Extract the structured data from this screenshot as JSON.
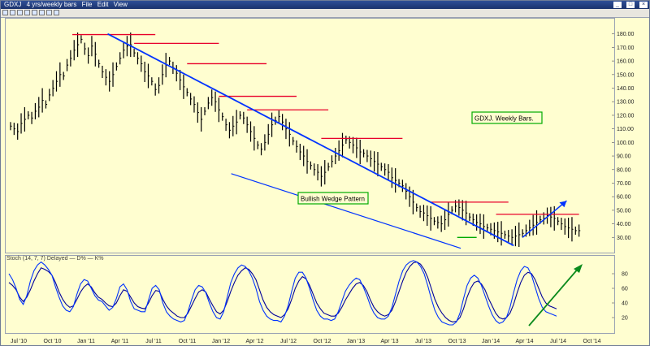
{
  "window": {
    "symbol": "GDXJ",
    "timeframe": "4 yrs/weekly bars"
  },
  "menu": [
    "File",
    "Edit",
    "View"
  ],
  "toolbar_icons": [
    "crosshair-icon",
    "zoom-icon",
    "line-icon",
    "text-icon",
    "hline-icon",
    "trend-icon",
    "fib-icon",
    "arrow-icon"
  ],
  "oscillator": {
    "name": "Stoch",
    "params": "(14, 7, 7) Delayed",
    "series": [
      "D%",
      "K%"
    ]
  },
  "colors": {
    "bars": "#000000",
    "resistance": "#e8002a",
    "trend": "#0033ff",
    "stoch_d": "#000099",
    "stoch_k": "#0033ff",
    "arrow_green": "#0a8a1c",
    "box_border": "#00aa00"
  },
  "annotations": {
    "title_box": "GDXJ. Weekly Bars.",
    "pattern_box": "Bullish Wedge Pattern"
  },
  "chart_data": [
    {
      "type": "bar",
      "title": "",
      "y_ticks": [
        30,
        40,
        50,
        60,
        70,
        80,
        90,
        100,
        110,
        120,
        130,
        140,
        150,
        160,
        170,
        180
      ],
      "y_tick_labels": [
        "30.00",
        "40.00",
        "50.00",
        "60.00",
        "70.00",
        "80.00",
        "90.00",
        "100.00",
        "110.00",
        "120.00",
        "130.00",
        "140.00",
        "150.00",
        "160.00",
        "170.00",
        "180.00"
      ],
      "ylim": [
        20,
        190
      ],
      "x_ticks": [
        "Jul '10",
        "Oct '10",
        "Jan '11",
        "Apr '11",
        "Jul '11",
        "Oct '11",
        "Jan '12",
        "Apr '12",
        "Jul '12",
        "Oct '12",
        "Jan '13",
        "Apr '13",
        "Jul '13",
        "Oct '13",
        "Jan '14",
        "Apr '14",
        "Jul '14",
        "Oct '14"
      ],
      "x_range_weeks": [
        0,
        225
      ],
      "closes": [
        112,
        110,
        108,
        114,
        117,
        120,
        118,
        123,
        126,
        131,
        128,
        135,
        140,
        145,
        150,
        149,
        157,
        162,
        168,
        172,
        176,
        169,
        164,
        171,
        165,
        158,
        152,
        148,
        145,
        150,
        156,
        162,
        168,
        171,
        172,
        166,
        162,
        158,
        152,
        149,
        145,
        139,
        142,
        150,
        157,
        160,
        155,
        151,
        146,
        141,
        137,
        132,
        128,
        122,
        117,
        123,
        129,
        133,
        130,
        124,
        119,
        113,
        109,
        112,
        115,
        120,
        118,
        113,
        108,
        103,
        98,
        95,
        100,
        106,
        113,
        116,
        119,
        115,
        110,
        106,
        101,
        97,
        93,
        90,
        86,
        83,
        80,
        78,
        75,
        78,
        82,
        86,
        90,
        94,
        98,
        102,
        100,
        98,
        96,
        93,
        92,
        90,
        88,
        86,
        84,
        82,
        80,
        78,
        74,
        72,
        70,
        68,
        64,
        60,
        56,
        52,
        49,
        48,
        46,
        44,
        42,
        41,
        40,
        43,
        47,
        50,
        53,
        52,
        50,
        48,
        45,
        43,
        41,
        40,
        38,
        37,
        36,
        35,
        34,
        33,
        32,
        31,
        30,
        31,
        32,
        33,
        35,
        37,
        39,
        41,
        43,
        44,
        46,
        45,
        44,
        42,
        40,
        38,
        37,
        36,
        35,
        35
      ],
      "resistance_lines": [
        {
          "week": 35,
          "end_week": 82,
          "value": 179.5
        },
        {
          "week": 70,
          "end_week": 118,
          "value": 173
        },
        {
          "week": 100,
          "end_week": 145,
          "value": 158
        },
        {
          "week": 118,
          "end_week": 162,
          "value": 134
        },
        {
          "week": 134,
          "end_week": 180,
          "value": 124
        },
        {
          "week": 176,
          "end_week": 222,
          "value": 103
        },
        {
          "week": 238,
          "end_week": 282,
          "value": 56
        },
        {
          "week": 275,
          "end_week": 322,
          "value": 47
        }
      ],
      "support_lines": [
        {
          "week": 253,
          "end_week": 264,
          "value": 30
        }
      ],
      "wedge_upper": [
        {
          "week": 55,
          "value": 180
        },
        {
          "week": 285,
          "value": 24
        }
      ],
      "wedge_lower": [
        {
          "week": 125,
          "value": 77
        },
        {
          "week": 255,
          "value": 22
        }
      ],
      "projection_arrow": [
        {
          "week": 290,
          "value": 30
        },
        {
          "week": 315,
          "value": 57
        }
      ]
    },
    {
      "type": "line",
      "title": "",
      "y_ticks": [
        20,
        40,
        60,
        80
      ],
      "y_tick_labels": [
        "20",
        "40",
        "60",
        "80"
      ],
      "ylim": [
        0,
        100
      ],
      "series": [
        {
          "name": "D%",
          "values": [
            68,
            64,
            58,
            48,
            42,
            48,
            58,
            70,
            80,
            88,
            86,
            83,
            78,
            68,
            55,
            45,
            38,
            34,
            36,
            45,
            55,
            62,
            66,
            62,
            54,
            48,
            45,
            40,
            36,
            35,
            40,
            50,
            58,
            56,
            48,
            40,
            35,
            33,
            32,
            40,
            50,
            57,
            56,
            45,
            36,
            30,
            26,
            22,
            20,
            20,
            26,
            36,
            46,
            55,
            58,
            55,
            45,
            36,
            28,
            25,
            30,
            42,
            56,
            68,
            78,
            84,
            88,
            86,
            80,
            72,
            58,
            44,
            34,
            28,
            24,
            22,
            20,
            24,
            32,
            45,
            60,
            70,
            76,
            73,
            64,
            52,
            40,
            32,
            26,
            24,
            22,
            22,
            26,
            34,
            44,
            52,
            60,
            66,
            68,
            64,
            56,
            44,
            34,
            28,
            24,
            22,
            24,
            30,
            42,
            56,
            70,
            82,
            90,
            95,
            96,
            93,
            86,
            75,
            60,
            45,
            34,
            26,
            20,
            16,
            14,
            15,
            20,
            32,
            48,
            60,
            68,
            70,
            66,
            58,
            46,
            36,
            26,
            20,
            18,
            20,
            26,
            38,
            54,
            68,
            78,
            82,
            80,
            72,
            60,
            48,
            40,
            36,
            34,
            32
          ]
        },
        {
          "name": "K%",
          "values": [
            80,
            72,
            60,
            45,
            38,
            50,
            70,
            84,
            92,
            96,
            92,
            86,
            78,
            62,
            48,
            36,
            30,
            28,
            35,
            52,
            66,
            72,
            70,
            60,
            50,
            44,
            42,
            36,
            30,
            34,
            46,
            62,
            66,
            58,
            42,
            32,
            30,
            28,
            28,
            44,
            60,
            64,
            58,
            40,
            28,
            22,
            18,
            16,
            14,
            16,
            28,
            44,
            58,
            64,
            62,
            54,
            40,
            28,
            20,
            18,
            28,
            48,
            68,
            80,
            88,
            92,
            90,
            84,
            74,
            60,
            42,
            30,
            22,
            18,
            16,
            16,
            14,
            22,
            36,
            56,
            74,
            82,
            82,
            74,
            60,
            44,
            30,
            22,
            18,
            18,
            16,
            18,
            28,
            42,
            56,
            64,
            70,
            74,
            72,
            62,
            50,
            36,
            26,
            20,
            18,
            18,
            22,
            34,
            52,
            70,
            84,
            92,
            96,
            98,
            96,
            90,
            80,
            64,
            46,
            30,
            20,
            14,
            12,
            10,
            10,
            14,
            26,
            46,
            64,
            74,
            78,
            74,
            64,
            50,
            36,
            24,
            16,
            12,
            14,
            20,
            34,
            54,
            72,
            84,
            90,
            88,
            78,
            62,
            46,
            34,
            28,
            26,
            24,
            22
          ]
        }
      ]
    }
  ]
}
